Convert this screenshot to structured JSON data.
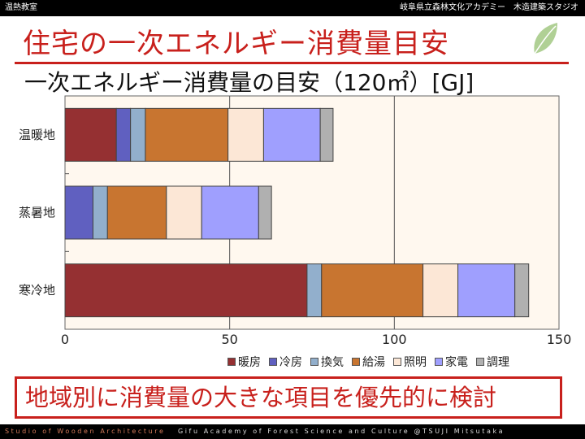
{
  "header": {
    "left": "温熱教室",
    "right": "岐阜県立森林文化アカデミー　木造建築スタジオ"
  },
  "title": "住宅の一次エネルギー消費量目安",
  "subtitle": "一次エネルギー消費量の目安（120㎡）[GJ]",
  "conclusion": "地域別に消費量の大きな項目を優先的に検討",
  "footer": {
    "left": "Studio of Wooden Architecture",
    "right": "Gifu Academy of Forest Science and Culture @TSUJI Mitsutaka"
  },
  "chart_data": {
    "type": "bar",
    "orientation": "horizontal-stacked",
    "categories": [
      "温暖地",
      "蒸暑地",
      "寒冷地"
    ],
    "xlim": [
      0,
      150
    ],
    "xticks": [
      "0",
      "50",
      "100",
      "150"
    ],
    "grid": true,
    "legend_position": "bottom-right",
    "series": [
      {
        "name": "暖房",
        "color": "#953032",
        "values": [
          15.6,
          0,
          73.5
        ]
      },
      {
        "name": "冷房",
        "color": "#6060c0",
        "values": [
          4.3,
          8.5,
          0
        ]
      },
      {
        "name": "換気",
        "color": "#92afcc",
        "values": [
          4.5,
          4.4,
          4.4
        ]
      },
      {
        "name": "給湯",
        "color": "#c87530",
        "values": [
          25.1,
          17.9,
          30.8
        ]
      },
      {
        "name": "照明",
        "color": "#fce7d6",
        "values": [
          10.8,
          10.7,
          10.6
        ]
      },
      {
        "name": "家電",
        "color": "#9f9ffe",
        "values": [
          17.2,
          17.3,
          17.3
        ]
      },
      {
        "name": "調理",
        "color": "#b0b0b0",
        "values": [
          3.9,
          3.9,
          4.2
        ]
      }
    ]
  }
}
